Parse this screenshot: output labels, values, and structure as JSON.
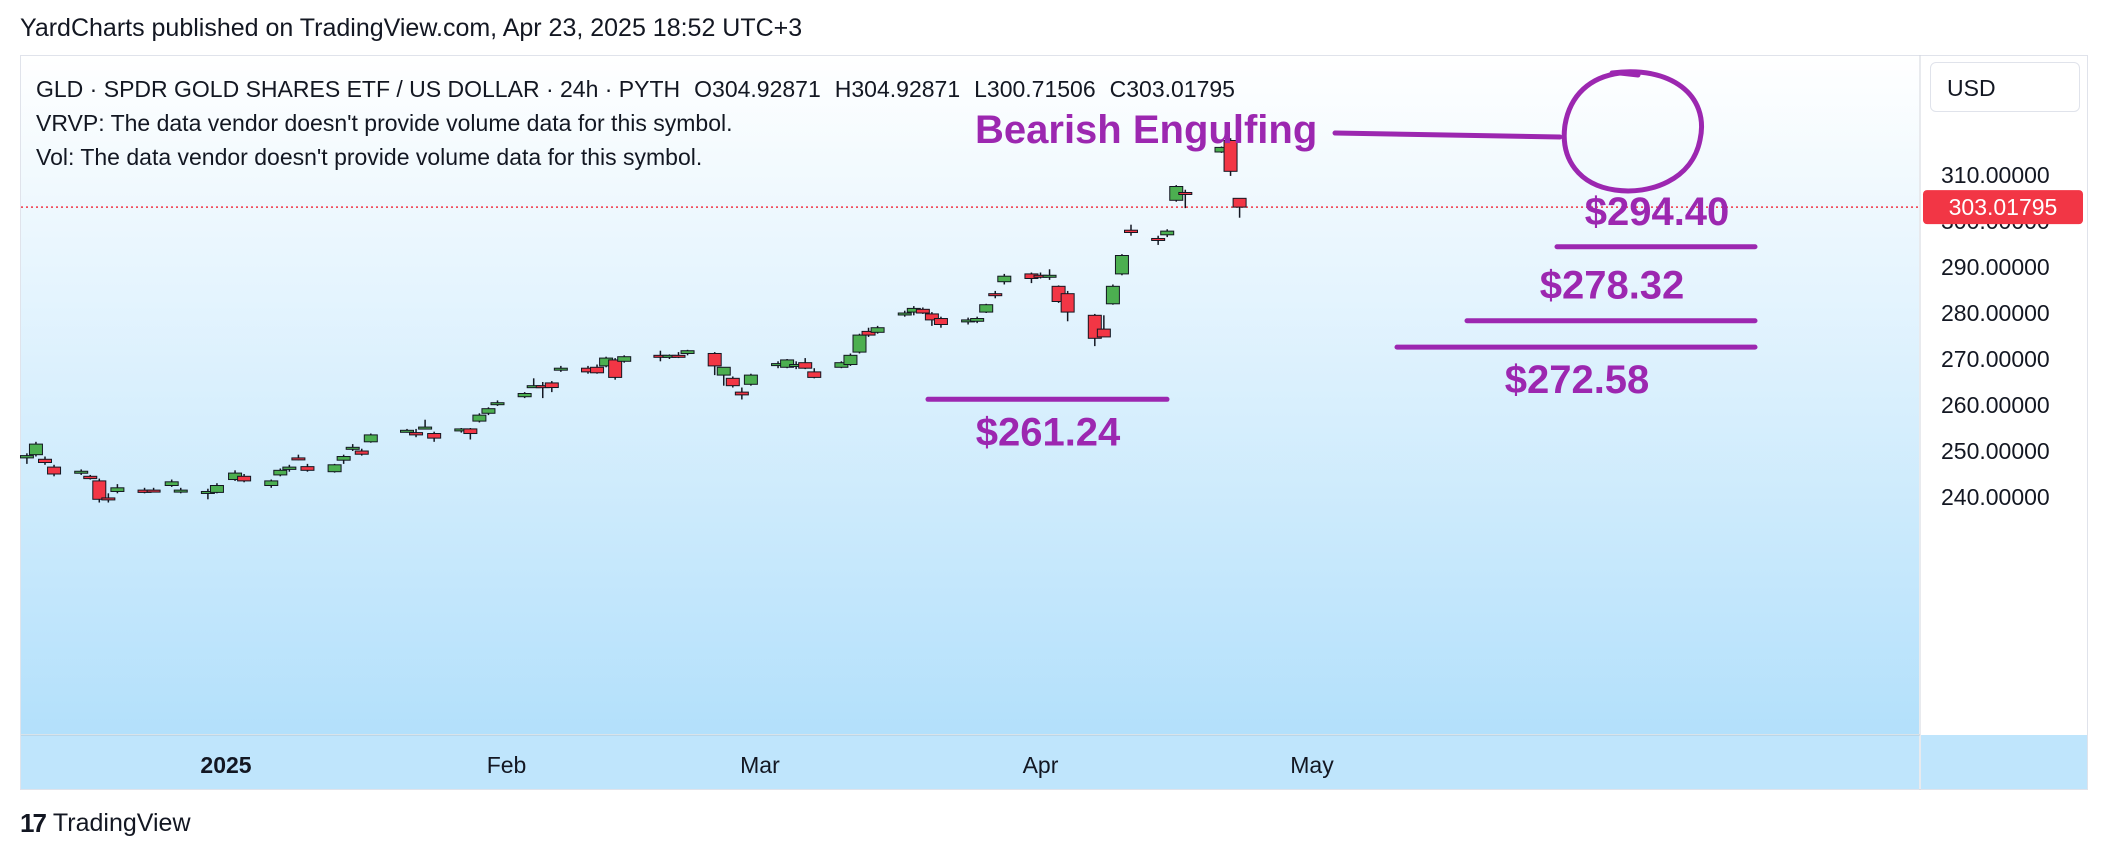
{
  "publisher": "YardCharts published on TradingView.com, Apr 23, 2025 18:52 UTC+3",
  "legend": {
    "symbol": "GLD · SPDR GOLD SHARES ETF / US DOLLAR · 24h · PYTH",
    "open": "O304.92871",
    "high": "H304.92871",
    "low": "L300.71506",
    "close": "C303.01795",
    "vrvp": "VRVP: The data vendor doesn't provide volume data for this symbol.",
    "vol": "Vol: The data vendor doesn't provide volume data for this symbol."
  },
  "currency": "USD",
  "footer": {
    "logo_text": "TradingView"
  },
  "colors": {
    "up": "#4caf50",
    "down": "#f23645",
    "annotation": "#9c27b0",
    "price_tag": "#f23645",
    "bg_top": "#ffffff",
    "bg_bottom": "#b3e0fb"
  },
  "chart_data": {
    "type": "candlestick",
    "title": "",
    "y_axis": {
      "min": 232,
      "max": 318,
      "ticks": [
        "310.00000",
        "300.00000",
        "290.00000",
        "280.00000",
        "270.00000",
        "260.00000",
        "250.00000",
        "240.00000"
      ],
      "tick_values": [
        310,
        300,
        290,
        280,
        270,
        260,
        250,
        240
      ],
      "position": "right"
    },
    "x_axis": {
      "labels": [
        {
          "label": "2025",
          "date": "2025-01-01",
          "bold": true
        },
        {
          "label": "Feb",
          "date": "2025-02-01",
          "bold": false
        },
        {
          "label": "Mar",
          "date": "2025-03-01",
          "bold": false
        },
        {
          "label": "Apr",
          "date": "2025-04-01",
          "bold": false
        },
        {
          "label": "May",
          "date": "2025-05-01",
          "bold": false
        }
      ]
    },
    "last_price": {
      "value": 303.01795,
      "label": "303.01795"
    },
    "candles": [
      {
        "d": "2024-12-10",
        "o": 248.5,
        "h": 249.5,
        "l": 247.2,
        "c": 249.0
      },
      {
        "d": "2024-12-11",
        "o": 249.2,
        "h": 252.0,
        "l": 248.8,
        "c": 251.5
      },
      {
        "d": "2024-12-12",
        "o": 248.2,
        "h": 248.8,
        "l": 247.0,
        "c": 247.5
      },
      {
        "d": "2024-12-13",
        "o": 246.5,
        "h": 247.0,
        "l": 244.5,
        "c": 245.0
      },
      {
        "d": "2024-12-16",
        "o": 245.2,
        "h": 246.0,
        "l": 244.8,
        "c": 245.6
      },
      {
        "d": "2024-12-17",
        "o": 244.5,
        "h": 244.8,
        "l": 243.8,
        "c": 244.0
      },
      {
        "d": "2024-12-18",
        "o": 243.5,
        "h": 244.0,
        "l": 238.8,
        "c": 239.5
      },
      {
        "d": "2024-12-19",
        "o": 239.8,
        "h": 240.8,
        "l": 238.8,
        "c": 239.6
      },
      {
        "d": "2024-12-20",
        "o": 241.2,
        "h": 242.8,
        "l": 240.8,
        "c": 242.0
      },
      {
        "d": "2024-12-23",
        "o": 241.5,
        "h": 242.0,
        "l": 240.8,
        "c": 241.0
      },
      {
        "d": "2024-12-24",
        "o": 241.5,
        "h": 242.0,
        "l": 241.0,
        "c": 241.3
      },
      {
        "d": "2024-12-26",
        "o": 242.5,
        "h": 243.8,
        "l": 242.2,
        "c": 243.3
      },
      {
        "d": "2024-12-27",
        "o": 241.2,
        "h": 242.0,
        "l": 240.8,
        "c": 241.5
      },
      {
        "d": "2024-12-30",
        "o": 240.8,
        "h": 241.8,
        "l": 239.5,
        "c": 241.2
      },
      {
        "d": "2024-12-31",
        "o": 241.0,
        "h": 243.0,
        "l": 240.8,
        "c": 242.5
      },
      {
        "d": "2025-01-02",
        "o": 243.8,
        "h": 245.8,
        "l": 243.5,
        "c": 245.2
      },
      {
        "d": "2025-01-03",
        "o": 244.5,
        "h": 245.0,
        "l": 243.2,
        "c": 243.5
      },
      {
        "d": "2025-01-06",
        "o": 242.5,
        "h": 243.8,
        "l": 242.0,
        "c": 243.5
      },
      {
        "d": "2025-01-07",
        "o": 244.8,
        "h": 246.2,
        "l": 244.5,
        "c": 245.8
      },
      {
        "d": "2025-01-08",
        "o": 246.0,
        "h": 247.0,
        "l": 245.5,
        "c": 246.5
      },
      {
        "d": "2025-01-09",
        "o": 248.5,
        "h": 249.2,
        "l": 248.0,
        "c": 248.2
      },
      {
        "d": "2025-01-10",
        "o": 246.6,
        "h": 247.2,
        "l": 245.5,
        "c": 245.8
      },
      {
        "d": "2025-01-13",
        "o": 245.5,
        "h": 247.2,
        "l": 245.3,
        "c": 247.0
      },
      {
        "d": "2025-01-14",
        "o": 248.0,
        "h": 249.2,
        "l": 247.2,
        "c": 248.8
      },
      {
        "d": "2025-01-15",
        "o": 250.5,
        "h": 251.5,
        "l": 250.0,
        "c": 250.8
      },
      {
        "d": "2025-01-16",
        "o": 250.0,
        "h": 250.5,
        "l": 249.0,
        "c": 249.3
      },
      {
        "d": "2025-01-17",
        "o": 252.0,
        "h": 253.8,
        "l": 251.8,
        "c": 253.5
      },
      {
        "d": "2025-01-21",
        "o": 254.2,
        "h": 254.8,
        "l": 254.0,
        "c": 254.5
      },
      {
        "d": "2025-01-22",
        "o": 254.0,
        "h": 254.8,
        "l": 253.0,
        "c": 253.5
      },
      {
        "d": "2025-01-23",
        "o": 254.8,
        "h": 256.8,
        "l": 254.8,
        "c": 255.2
      },
      {
        "d": "2025-01-24",
        "o": 253.8,
        "h": 254.2,
        "l": 252.0,
        "c": 252.8
      },
      {
        "d": "2025-01-27",
        "o": 254.5,
        "h": 255.0,
        "l": 254.0,
        "c": 254.8
      },
      {
        "d": "2025-01-28",
        "o": 254.8,
        "h": 255.0,
        "l": 252.5,
        "c": 253.8
      },
      {
        "d": "2025-01-29",
        "o": 256.5,
        "h": 258.2,
        "l": 256.2,
        "c": 257.8
      },
      {
        "d": "2025-01-30",
        "o": 258.2,
        "h": 259.5,
        "l": 257.8,
        "c": 259.2
      },
      {
        "d": "2025-01-31",
        "o": 260.2,
        "h": 261.0,
        "l": 259.8,
        "c": 260.5
      },
      {
        "d": "2025-02-03",
        "o": 261.8,
        "h": 262.8,
        "l": 261.5,
        "c": 262.5
      },
      {
        "d": "2025-02-04",
        "o": 264.0,
        "h": 265.8,
        "l": 263.8,
        "c": 264.2
      },
      {
        "d": "2025-02-05",
        "o": 264.2,
        "h": 265.0,
        "l": 261.5,
        "c": 264.0
      },
      {
        "d": "2025-02-06",
        "o": 264.8,
        "h": 265.2,
        "l": 262.8,
        "c": 263.8
      },
      {
        "d": "2025-02-07",
        "o": 267.8,
        "h": 268.5,
        "l": 267.2,
        "c": 268.0
      },
      {
        "d": "2025-02-10",
        "o": 268.0,
        "h": 268.5,
        "l": 266.8,
        "c": 267.2
      },
      {
        "d": "2025-02-11",
        "o": 268.2,
        "h": 268.8,
        "l": 266.8,
        "c": 267.0
      },
      {
        "d": "2025-02-12",
        "o": 268.5,
        "h": 270.5,
        "l": 268.2,
        "c": 270.2
      },
      {
        "d": "2025-02-13",
        "o": 269.8,
        "h": 270.2,
        "l": 265.5,
        "c": 266.0
      },
      {
        "d": "2025-02-14",
        "o": 269.5,
        "h": 270.8,
        "l": 269.2,
        "c": 270.5
      },
      {
        "d": "2025-02-18",
        "o": 270.8,
        "h": 271.8,
        "l": 269.5,
        "c": 270.5
      },
      {
        "d": "2025-02-19",
        "o": 270.6,
        "h": 271.0,
        "l": 270.0,
        "c": 270.8
      },
      {
        "d": "2025-02-20",
        "o": 270.8,
        "h": 271.5,
        "l": 270.2,
        "c": 270.5
      },
      {
        "d": "2025-02-21",
        "o": 271.2,
        "h": 272.0,
        "l": 270.8,
        "c": 271.8
      },
      {
        "d": "2025-02-24",
        "o": 271.2,
        "h": 271.5,
        "l": 266.5,
        "c": 268.5
      },
      {
        "d": "2025-02-25",
        "o": 266.5,
        "h": 268.2,
        "l": 264.2,
        "c": 268.2
      },
      {
        "d": "2025-02-26",
        "o": 265.8,
        "h": 266.2,
        "l": 263.8,
        "c": 264.2
      },
      {
        "d": "2025-02-27",
        "o": 262.8,
        "h": 263.8,
        "l": 261.2,
        "c": 262.2
      },
      {
        "d": "2025-02-28",
        "o": 264.5,
        "h": 266.8,
        "l": 264.2,
        "c": 266.5
      },
      {
        "d": "2025-03-03",
        "o": 268.8,
        "h": 269.5,
        "l": 268.0,
        "c": 269.0
      },
      {
        "d": "2025-03-04",
        "o": 268.2,
        "h": 270.0,
        "l": 268.0,
        "c": 269.8
      },
      {
        "d": "2025-03-05",
        "o": 268.5,
        "h": 269.5,
        "l": 267.8,
        "c": 268.8
      },
      {
        "d": "2025-03-06",
        "o": 269.2,
        "h": 270.2,
        "l": 267.8,
        "c": 268.0
      },
      {
        "d": "2025-03-07",
        "o": 267.2,
        "h": 268.0,
        "l": 265.8,
        "c": 266.0
      },
      {
        "d": "2025-03-10",
        "o": 268.2,
        "h": 269.5,
        "l": 268.0,
        "c": 269.2
      },
      {
        "d": "2025-03-11",
        "o": 268.8,
        "h": 271.2,
        "l": 268.5,
        "c": 270.8
      },
      {
        "d": "2025-03-12",
        "o": 271.5,
        "h": 275.5,
        "l": 271.2,
        "c": 275.2
      },
      {
        "d": "2025-03-13",
        "o": 276.0,
        "h": 276.8,
        "l": 274.8,
        "c": 275.2
      },
      {
        "d": "2025-03-14",
        "o": 275.8,
        "h": 277.2,
        "l": 275.5,
        "c": 276.8
      },
      {
        "d": "2025-03-17",
        "o": 279.8,
        "h": 280.5,
        "l": 279.2,
        "c": 280.0
      },
      {
        "d": "2025-03-18",
        "o": 280.2,
        "h": 281.5,
        "l": 279.5,
        "c": 281.0
      },
      {
        "d": "2025-03-19",
        "o": 280.8,
        "h": 281.2,
        "l": 279.8,
        "c": 280.0
      },
      {
        "d": "2025-03-20",
        "o": 279.8,
        "h": 280.2,
        "l": 277.2,
        "c": 278.5
      },
      {
        "d": "2025-03-21",
        "o": 278.8,
        "h": 279.2,
        "l": 276.8,
        "c": 277.5
      },
      {
        "d": "2025-03-24",
        "o": 278.2,
        "h": 279.0,
        "l": 277.5,
        "c": 278.5
      },
      {
        "d": "2025-03-25",
        "o": 278.2,
        "h": 279.2,
        "l": 277.8,
        "c": 278.8
      },
      {
        "d": "2025-03-26",
        "o": 280.2,
        "h": 282.0,
        "l": 280.0,
        "c": 281.8
      },
      {
        "d": "2025-03-27",
        "o": 284.2,
        "h": 284.8,
        "l": 283.2,
        "c": 283.8
      },
      {
        "d": "2025-03-28",
        "o": 286.8,
        "h": 288.5,
        "l": 286.2,
        "c": 288.0
      },
      {
        "d": "2025-03-31",
        "o": 288.5,
        "h": 288.8,
        "l": 286.5,
        "c": 287.5
      },
      {
        "d": "2025-04-01",
        "o": 288.2,
        "h": 288.8,
        "l": 287.5,
        "c": 288.0
      },
      {
        "d": "2025-04-02",
        "o": 288.0,
        "h": 289.5,
        "l": 287.2,
        "c": 288.2
      },
      {
        "d": "2025-04-03",
        "o": 285.8,
        "h": 286.0,
        "l": 282.2,
        "c": 282.5
      },
      {
        "d": "2025-04-04",
        "o": 284.2,
        "h": 284.8,
        "l": 278.2,
        "c": 280.2
      },
      {
        "d": "2025-04-07",
        "o": 279.5,
        "h": 279.8,
        "l": 272.8,
        "c": 274.5
      },
      {
        "d": "2025-04-08",
        "o": 276.5,
        "h": 279.5,
        "l": 275.5,
        "c": 274.8
      },
      {
        "d": "2025-04-09",
        "o": 282.0,
        "h": 286.2,
        "l": 281.8,
        "c": 285.8
      },
      {
        "d": "2025-04-10",
        "o": 288.5,
        "h": 292.8,
        "l": 288.2,
        "c": 292.5
      },
      {
        "d": "2025-04-11",
        "o": 298.0,
        "h": 299.2,
        "l": 296.8,
        "c": 297.5
      },
      {
        "d": "2025-04-14",
        "o": 296.2,
        "h": 296.8,
        "l": 294.8,
        "c": 295.8
      },
      {
        "d": "2025-04-15",
        "o": 297.0,
        "h": 298.2,
        "l": 296.5,
        "c": 297.8
      },
      {
        "d": "2025-04-16",
        "o": 304.5,
        "h": 307.8,
        "l": 304.2,
        "c": 307.5
      },
      {
        "d": "2025-04-17",
        "o": 306.2,
        "h": 306.8,
        "l": 302.8,
        "c": 306.0
      },
      {
        "d": "2025-04-21",
        "o": 315.0,
        "h": 316.2,
        "l": 314.8,
        "c": 316.0
      },
      {
        "d": "2025-04-22",
        "o": 317.5,
        "h": 318.0,
        "l": 309.8,
        "c": 310.8
      },
      {
        "d": "2025-04-23",
        "o": 304.92871,
        "h": 304.92871,
        "l": 300.71506,
        "c": 303.01795
      }
    ]
  },
  "annotations": {
    "pattern_label": "Bearish Engulfing",
    "levels": [
      {
        "label": "$294.40",
        "value": 294.4
      },
      {
        "label": "$278.32",
        "value": 278.32
      },
      {
        "label": "$272.58",
        "value": 272.58
      },
      {
        "label": "$261.24",
        "value": 261.24
      }
    ]
  }
}
